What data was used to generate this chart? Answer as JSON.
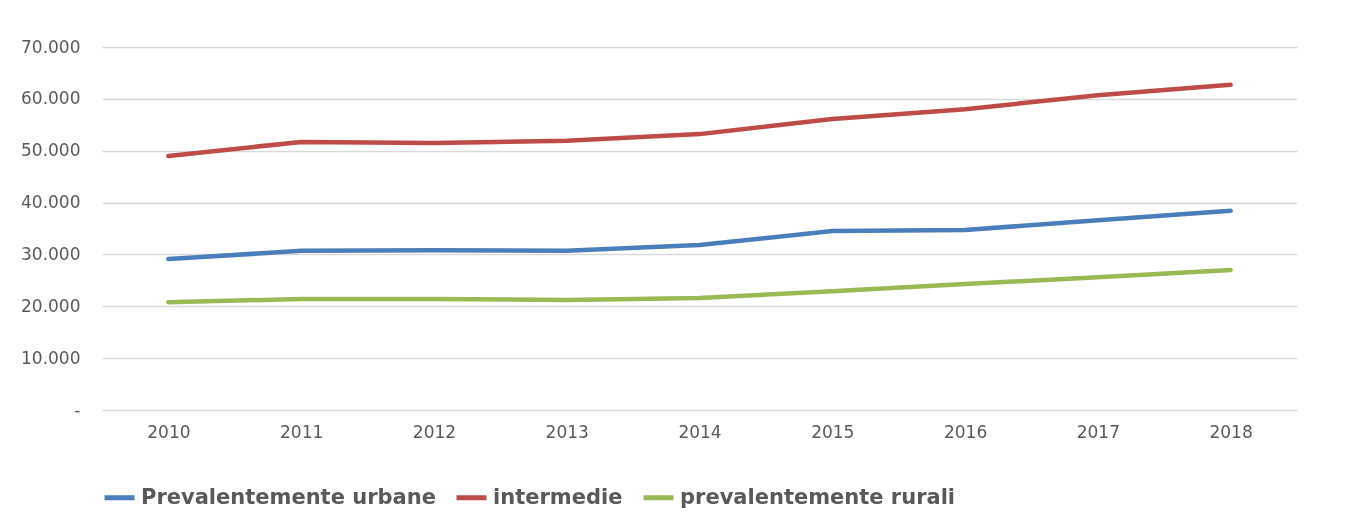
{
  "chart_data": {
    "type": "line",
    "categories": [
      "2010",
      "2011",
      "2012",
      "2013",
      "2014",
      "2015",
      "2016",
      "2017",
      "2018"
    ],
    "series": [
      {
        "name": "Prevalentemente urbane",
        "color": "#4a7ebb",
        "values": [
          29100,
          30700,
          30800,
          30700,
          31800,
          34500,
          34700,
          36600,
          38400
        ]
      },
      {
        "name": "intermedie",
        "color": "#be4b48",
        "values": [
          49000,
          51700,
          51500,
          51900,
          53200,
          56100,
          58000,
          60700,
          62700
        ]
      },
      {
        "name": "prevalentemente rurali",
        "color": "#98b954",
        "values": [
          20800,
          21400,
          21400,
          21200,
          21600,
          22900,
          24300,
          25600,
          27000
        ]
      }
    ],
    "ylim": [
      0,
      70000
    ],
    "yticks": [
      {
        "value": 0,
        "label": "-"
      },
      {
        "value": 10000,
        "label": "10.000"
      },
      {
        "value": 20000,
        "label": "20.000"
      },
      {
        "value": 30000,
        "label": "30.000"
      },
      {
        "value": 40000,
        "label": "40.000"
      },
      {
        "value": 50000,
        "label": "50.000"
      },
      {
        "value": 60000,
        "label": "60.000"
      },
      {
        "value": 70000,
        "label": "70.000"
      }
    ],
    "grid": "y",
    "legend": "bottom",
    "marker": "none",
    "line_style": "solid"
  }
}
